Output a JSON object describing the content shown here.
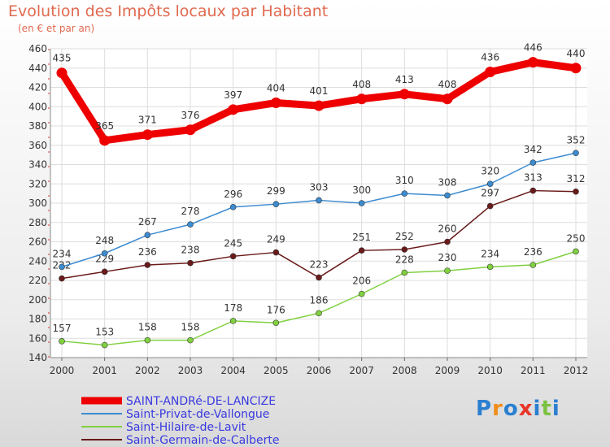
{
  "title": "Evolution des Impôts locaux par Habitant",
  "subtitle": "(en € et par an)",
  "logo": {
    "letters": [
      "P",
      "r",
      "o",
      "x",
      "i",
      "t",
      "i"
    ],
    "colors": [
      "#2a7fd0",
      "#f08c1a",
      "#2a7fd0",
      "#e8362a",
      "#2a7fd0",
      "#7cc242",
      "#2a7fd0"
    ]
  },
  "chart_data": {
    "type": "line",
    "title": "Evolution des Impôts locaux par Habitant",
    "subtitle": "(en € et par an)",
    "xlabel": "",
    "ylabel": "",
    "x": [
      "2000",
      "2001",
      "2002",
      "2003",
      "2004",
      "2005",
      "2006",
      "2007",
      "2008",
      "2009",
      "2010",
      "2011",
      "2012"
    ],
    "ylim": [
      140,
      460
    ],
    "yticks": [
      140,
      160,
      180,
      200,
      220,
      240,
      260,
      280,
      300,
      320,
      340,
      360,
      380,
      400,
      420,
      440,
      460
    ],
    "grid": true,
    "legend_position": "bottom-left",
    "series": [
      {
        "name": "SAINT-ANDRé-DE-LANCIZE",
        "color": "#ee0000",
        "values": [
          435,
          365,
          371,
          376,
          397,
          404,
          401,
          408,
          413,
          408,
          436,
          446,
          440
        ]
      },
      {
        "name": "Saint-Privat-de-Vallongue",
        "color": "#3d8bd0",
        "values": [
          234,
          248,
          267,
          278,
          296,
          299,
          303,
          300,
          310,
          308,
          320,
          342,
          352
        ]
      },
      {
        "name": "Saint-Hilaire-de-Lavit",
        "color": "#80d040",
        "values": [
          157,
          153,
          158,
          158,
          178,
          176,
          186,
          206,
          228,
          230,
          234,
          236,
          250
        ]
      },
      {
        "name": "Saint-Germain-de-Calberte",
        "color": "#6a1a1a",
        "values": [
          222,
          229,
          236,
          238,
          245,
          249,
          223,
          251,
          252,
          260,
          297,
          313,
          312
        ]
      }
    ]
  }
}
